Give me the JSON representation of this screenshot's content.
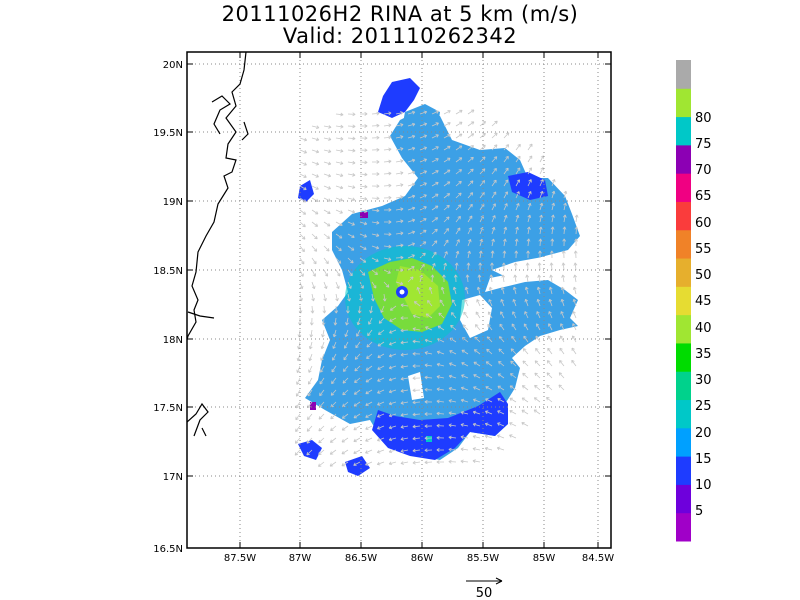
{
  "title": {
    "line1": "20111026H2 RINA at 5 km (m/s)",
    "line2": "Valid: 201110262342"
  },
  "map": {
    "lat_labels": [
      "16.5N",
      "17N",
      "17.5N",
      "18N",
      "18.5N",
      "19N",
      "19.5N",
      "20N"
    ],
    "lon_labels": [
      "87.5W",
      "87W",
      "86.5W",
      "86W",
      "85.5W",
      "85W",
      "84.5W"
    ],
    "grid": "dotted"
  },
  "colorbar": {
    "labels": [
      "5",
      "10",
      "15",
      "20",
      "25",
      "30",
      "35",
      "40",
      "45",
      "50",
      "55",
      "60",
      "65",
      "70",
      "75",
      "80"
    ],
    "colors": [
      "#a000c8",
      "#6e00dc",
      "#1e3cff",
      "#00a0ff",
      "#00c8c8",
      "#00d28c",
      "#00dc00",
      "#a0e632",
      "#e6dc32",
      "#e6af2d",
      "#f08228",
      "#fa3c3c",
      "#f00082",
      "#8c00b4",
      "#00c8c8",
      "#a0e632",
      "#aaaaaa"
    ]
  },
  "reference_vector": {
    "label": "50"
  },
  "palette": {
    "field_main": "#3ca0e6",
    "field_dark": "#1e3cff",
    "field_green": "#78dc3c",
    "field_teal": "#00c8c8",
    "arrows": "#c8c8c8"
  }
}
